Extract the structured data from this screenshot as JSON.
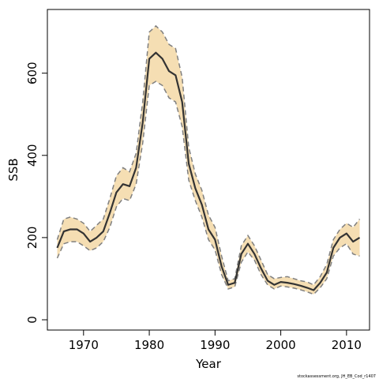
{
  "chart_data": {
    "type": "area",
    "xlabel": "Year",
    "ylabel": "SSB",
    "xlim": [
      1964.5,
      2013.5
    ],
    "ylim": [
      -25,
      755
    ],
    "x_ticks": [
      1970,
      1980,
      1990,
      2000,
      2010
    ],
    "y_ticks": [
      0,
      200,
      400,
      600
    ],
    "grid": false,
    "legend": "none",
    "colors": {
      "band": "#f5deb3",
      "line": "#333333",
      "bound": "#808080",
      "axis": "#000000"
    },
    "credit": "stockassessment.org, JH_EB_Cod_r1407",
    "series": [
      {
        "role": "estimate",
        "x": [
          1966,
          1967,
          1968,
          1969,
          1970,
          1971,
          1972,
          1973,
          1974,
          1975,
          1976,
          1977,
          1978,
          1979,
          1980,
          1981,
          1982,
          1983,
          1984,
          1985,
          1986,
          1987,
          1988,
          1989,
          1990,
          1991,
          1992,
          1993,
          1994,
          1995,
          1996,
          1997,
          1998,
          1999,
          2000,
          2001,
          2002,
          2003,
          2004,
          2005,
          2006,
          2007,
          2008,
          2009,
          2010,
          2011,
          2012
        ],
        "values": [
          175,
          215,
          220,
          220,
          210,
          190,
          200,
          215,
          260,
          310,
          330,
          325,
          370,
          480,
          635,
          650,
          635,
          605,
          595,
          530,
          380,
          320,
          280,
          220,
          195,
          130,
          85,
          90,
          160,
          185,
          160,
          125,
          95,
          85,
          92,
          90,
          87,
          83,
          78,
          72,
          90,
          115,
          175,
          200,
          210,
          190,
          200
        ]
      },
      {
        "role": "upper_bound",
        "x": [
          1966,
          1967,
          1968,
          1969,
          1970,
          1971,
          1972,
          1973,
          1974,
          1975,
          1976,
          1977,
          1978,
          1979,
          1980,
          1981,
          1982,
          1983,
          1984,
          1985,
          1986,
          1987,
          1988,
          1989,
          1990,
          1991,
          1992,
          1993,
          1994,
          1995,
          1996,
          1997,
          1998,
          1999,
          2000,
          2001,
          2002,
          2003,
          2004,
          2005,
          2006,
          2007,
          2008,
          2009,
          2010,
          2011,
          2012
        ],
        "values": [
          195,
          245,
          250,
          245,
          235,
          215,
          230,
          245,
          295,
          350,
          370,
          360,
          405,
          530,
          700,
          715,
          700,
          670,
          660,
          590,
          420,
          355,
          315,
          255,
          225,
          155,
          95,
          100,
          180,
          205,
          180,
          145,
          110,
          100,
          103,
          105,
          100,
          95,
          92,
          85,
          105,
          135,
          195,
          220,
          235,
          225,
          245
        ]
      },
      {
        "role": "lower_bound",
        "x": [
          1966,
          1967,
          1968,
          1969,
          1970,
          1971,
          1972,
          1973,
          1974,
          1975,
          1976,
          1977,
          1978,
          1979,
          1980,
          1981,
          1982,
          1983,
          1984,
          1985,
          1986,
          1987,
          1988,
          1989,
          1990,
          1991,
          1992,
          1993,
          1994,
          1995,
          1996,
          1997,
          1998,
          1999,
          2000,
          2001,
          2002,
          2003,
          2004,
          2005,
          2006,
          2007,
          2008,
          2009,
          2010,
          2011,
          2012
        ],
        "values": [
          150,
          185,
          190,
          190,
          180,
          168,
          175,
          190,
          225,
          275,
          295,
          290,
          330,
          430,
          570,
          580,
          570,
          540,
          530,
          470,
          340,
          290,
          250,
          195,
          170,
          110,
          75,
          80,
          140,
          165,
          145,
          110,
          85,
          75,
          82,
          80,
          77,
          73,
          68,
          62,
          78,
          100,
          155,
          175,
          185,
          160,
          155
        ]
      }
    ]
  }
}
